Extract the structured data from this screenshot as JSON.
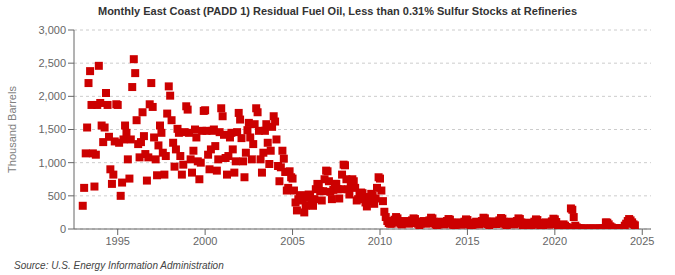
{
  "chart_data": {
    "type": "scatter",
    "title": "Monthly East Coast (PADD 1) Residual Fuel Oil, Less than 0.31% Sulfur Stocks at Refineries",
    "ylabel": "Thousand Barrels",
    "source": "Source: U.S. Energy Information Administration",
    "color": "#cc0000",
    "marker": "square",
    "grid": true,
    "xlim": [
      1992.5,
      2025.5
    ],
    "xticks": [
      1995,
      2000,
      2005,
      2010,
      2015,
      2020,
      2025
    ],
    "ylim": [
      0,
      3000
    ],
    "yticks": [
      0,
      500,
      {
        "value": 1000,
        "label": "1,000"
      },
      {
        "value": 1500,
        "label": "1,500"
      },
      {
        "value": 2000,
        "label": "2,000"
      },
      {
        "value": 2500,
        "label": "2,500"
      },
      {
        "value": 3000,
        "label": "3,000"
      }
    ],
    "x": [
      1993.0,
      1993.08,
      1993.17,
      1993.25,
      1993.33,
      1993.42,
      1993.5,
      1993.58,
      1993.67,
      1993.75,
      1993.83,
      1993.92,
      1994.0,
      1994.08,
      1994.17,
      1994.25,
      1994.33,
      1994.42,
      1994.5,
      1994.58,
      1994.67,
      1994.75,
      1994.83,
      1994.92,
      1995.0,
      1995.08,
      1995.17,
      1995.25,
      1995.33,
      1995.42,
      1995.5,
      1995.58,
      1995.67,
      1995.75,
      1995.83,
      1995.92,
      1996.0,
      1996.08,
      1996.17,
      1996.25,
      1996.33,
      1996.42,
      1996.5,
      1996.58,
      1996.67,
      1996.75,
      1996.83,
      1996.92,
      1997.0,
      1997.08,
      1997.17,
      1997.25,
      1997.33,
      1997.42,
      1997.5,
      1997.58,
      1997.67,
      1997.75,
      1997.83,
      1997.92,
      1998.0,
      1998.08,
      1998.17,
      1998.25,
      1998.33,
      1998.42,
      1998.5,
      1998.58,
      1998.67,
      1998.75,
      1998.83,
      1998.92,
      1999.0,
      1999.08,
      1999.17,
      1999.25,
      1999.33,
      1999.42,
      1999.5,
      1999.58,
      1999.67,
      1999.75,
      1999.83,
      1999.92,
      2000.0,
      2000.08,
      2000.17,
      2000.25,
      2000.33,
      2000.42,
      2000.5,
      2000.58,
      2000.67,
      2000.75,
      2000.83,
      2000.92,
      2001.0,
      2001.08,
      2001.17,
      2001.25,
      2001.33,
      2001.42,
      2001.5,
      2001.58,
      2001.67,
      2001.75,
      2001.83,
      2001.92,
      2002.0,
      2002.08,
      2002.17,
      2002.25,
      2002.33,
      2002.42,
      2002.5,
      2002.58,
      2002.67,
      2002.75,
      2002.83,
      2002.92,
      2003.0,
      2003.08,
      2003.17,
      2003.25,
      2003.33,
      2003.42,
      2003.5,
      2003.58,
      2003.67,
      2003.75,
      2003.83,
      2003.92,
      2004.0,
      2004.08,
      2004.17,
      2004.25,
      2004.33,
      2004.42,
      2004.5,
      2004.58,
      2004.67,
      2004.75,
      2004.83,
      2004.92,
      2005.0,
      2005.08,
      2005.17,
      2005.25,
      2005.33,
      2005.42,
      2005.5,
      2005.58,
      2005.67,
      2005.75,
      2005.83,
      2005.92,
      2006.0,
      2006.08,
      2006.17,
      2006.25,
      2006.33,
      2006.42,
      2006.5,
      2006.58,
      2006.67,
      2006.75,
      2006.83,
      2006.92,
      2007.0,
      2007.08,
      2007.17,
      2007.25,
      2007.33,
      2007.42,
      2007.5,
      2007.58,
      2007.67,
      2007.75,
      2007.83,
      2007.92,
      2008.0,
      2008.08,
      2008.17,
      2008.25,
      2008.33,
      2008.42,
      2008.5,
      2008.58,
      2008.67,
      2008.75,
      2008.83,
      2008.92,
      2009.0,
      2009.08,
      2009.17,
      2009.25,
      2009.33,
      2009.42,
      2009.5,
      2009.58,
      2009.67,
      2009.75,
      2009.83,
      2009.92,
      2010.0,
      2010.08,
      2010.17,
      2010.25,
      2010.33,
      2010.42,
      2010.5,
      2010.58,
      2010.67,
      2010.75,
      2010.83,
      2010.92,
      2011.0,
      2011.08,
      2011.17,
      2011.25,
      2011.33,
      2011.42,
      2011.5,
      2011.58,
      2011.67,
      2011.75,
      2011.83,
      2011.92,
      2012.0,
      2012.08,
      2012.17,
      2012.25,
      2012.33,
      2012.42,
      2012.5,
      2012.58,
      2012.67,
      2012.75,
      2012.83,
      2012.92,
      2013.0,
      2013.08,
      2013.17,
      2013.25,
      2013.33,
      2013.42,
      2013.5,
      2013.58,
      2013.67,
      2013.75,
      2013.83,
      2013.92,
      2014.0,
      2014.08,
      2014.17,
      2014.25,
      2014.33,
      2014.42,
      2014.5,
      2014.58,
      2014.67,
      2014.75,
      2014.83,
      2014.92,
      2015.0,
      2015.08,
      2015.17,
      2015.25,
      2015.33,
      2015.42,
      2015.5,
      2015.58,
      2015.67,
      2015.75,
      2015.83,
      2015.92,
      2016.0,
      2016.08,
      2016.17,
      2016.25,
      2016.33,
      2016.42,
      2016.5,
      2016.58,
      2016.67,
      2016.75,
      2016.83,
      2016.92,
      2017.0,
      2017.08,
      2017.17,
      2017.25,
      2017.33,
      2017.42,
      2017.5,
      2017.58,
      2017.67,
      2017.75,
      2017.83,
      2017.92,
      2018.0,
      2018.08,
      2018.17,
      2018.25,
      2018.33,
      2018.42,
      2018.5,
      2018.58,
      2018.67,
      2018.75,
      2018.83,
      2018.92,
      2019.0,
      2019.08,
      2019.17,
      2019.25,
      2019.33,
      2019.42,
      2019.5,
      2019.58,
      2019.67,
      2019.75,
      2019.83,
      2019.92,
      2020.0,
      2020.08,
      2020.17,
      2020.25,
      2020.33,
      2020.42,
      2020.5,
      2020.58,
      2020.67,
      2020.75,
      2020.83,
      2020.92,
      2021.0,
      2021.08,
      2021.17,
      2021.25,
      2021.33,
      2021.42,
      2021.5,
      2021.58,
      2021.67,
      2021.75,
      2021.83,
      2021.92,
      2022.0,
      2022.08,
      2022.17,
      2022.25,
      2022.33,
      2022.42,
      2022.5,
      2022.58,
      2022.67,
      2022.75,
      2022.83,
      2022.92,
      2023.0,
      2023.08,
      2023.17,
      2023.25,
      2023.33,
      2023.42,
      2023.5,
      2023.58,
      2023.67,
      2023.75,
      2023.83,
      2023.92,
      2024.0,
      2024.08,
      2024.17,
      2024.25,
      2024.33,
      2024.42,
      2024.5,
      2024.58
    ],
    "values": [
      350,
      620,
      1140,
      1530,
      2200,
      2380,
      1870,
      1140,
      640,
      1120,
      1870,
      2460,
      1900,
      1560,
      1310,
      1530,
      2050,
      1870,
      1390,
      900,
      680,
      820,
      1320,
      1880,
      1870,
      1300,
      500,
      700,
      1350,
      1560,
      1450,
      1050,
      760,
      1350,
      2140,
      2560,
      2350,
      1640,
      1280,
      1080,
      1310,
      1760,
      1400,
      1130,
      730,
      1080,
      1880,
      2200,
      1840,
      1380,
      1050,
      810,
      1260,
      1560,
      1450,
      1150,
      820,
      1100,
      1740,
      2150,
      2010,
      1640,
      1300,
      940,
      1200,
      1510,
      1450,
      1100,
      820,
      970,
      1460,
      1850,
      1800,
      1450,
      1050,
      850,
      1180,
      1500,
      1380,
      1020,
      750,
      1000,
      1480,
      1780,
      1790,
      1480,
      1120,
      900,
      1200,
      1480,
      1500,
      1250,
      880,
      1050,
      1460,
      1820,
      1700,
      1420,
      1070,
      820,
      1100,
      1380,
      1450,
      1200,
      850,
      1020,
      1460,
      1750,
      1650,
      1370,
      1020,
      780,
      1150,
      1490,
      1600,
      1380,
      1050,
      1280,
      1580,
      1820,
      1760,
      1480,
      1050,
      850,
      1150,
      1480,
      1580,
      1300,
      980,
      1180,
      1540,
      1700,
      1620,
      1350,
      950,
      720,
      930,
      1180,
      1060,
      860,
      580,
      620,
      870,
      780,
      760,
      580,
      400,
      280,
      450,
      500,
      510,
      430,
      250,
      350,
      470,
      520,
      510,
      440,
      350,
      450,
      600,
      680,
      640,
      570,
      430,
      570,
      750,
      880,
      870,
      720,
      560,
      450,
      590,
      680,
      680,
      600,
      460,
      600,
      820,
      970,
      960,
      750,
      600,
      520,
      680,
      750,
      720,
      620,
      430,
      450,
      540,
      550,
      540,
      480,
      400,
      340,
      420,
      480,
      530,
      500,
      380,
      460,
      620,
      780,
      760,
      580,
      420,
      260,
      180,
      120,
      90,
      80,
      80,
      100,
      140,
      180,
      160,
      120,
      80,
      70,
      90,
      110,
      120,
      100,
      80,
      90,
      130,
      160,
      150,
      110,
      80,
      60,
      80,
      100,
      120,
      100,
      80,
      90,
      130,
      170,
      160,
      110,
      70,
      55,
      70,
      90,
      110,
      90,
      70,
      80,
      120,
      150,
      140,
      100,
      65,
      50,
      65,
      85,
      100,
      85,
      65,
      75,
      110,
      145,
      135,
      95,
      60,
      50,
      70,
      90,
      110,
      90,
      70,
      80,
      120,
      170,
      160,
      115,
      75,
      60,
      80,
      100,
      115,
      95,
      75,
      85,
      130,
      165,
      155,
      110,
      70,
      55,
      75,
      95,
      110,
      90,
      70,
      80,
      120,
      160,
      150,
      100,
      60,
      45,
      60,
      80,
      95,
      80,
      60,
      70,
      110,
      145,
      135,
      95,
      60,
      45,
      60,
      80,
      100,
      85,
      65,
      75,
      115,
      155,
      145,
      105,
      60,
      40,
      50,
      60,
      70,
      50,
      30,
      20,
      15,
      310,
      290,
      180,
      50,
      25,
      15,
      10,
      8,
      6,
      5,
      4,
      5,
      6,
      7,
      6,
      5,
      5,
      6,
      5,
      6,
      7,
      8,
      8,
      9,
      100,
      95,
      70,
      40,
      25,
      15,
      10,
      8,
      7,
      8,
      10,
      12,
      15,
      50,
      80,
      120,
      150,
      130,
      100,
      70,
      55
    ]
  }
}
